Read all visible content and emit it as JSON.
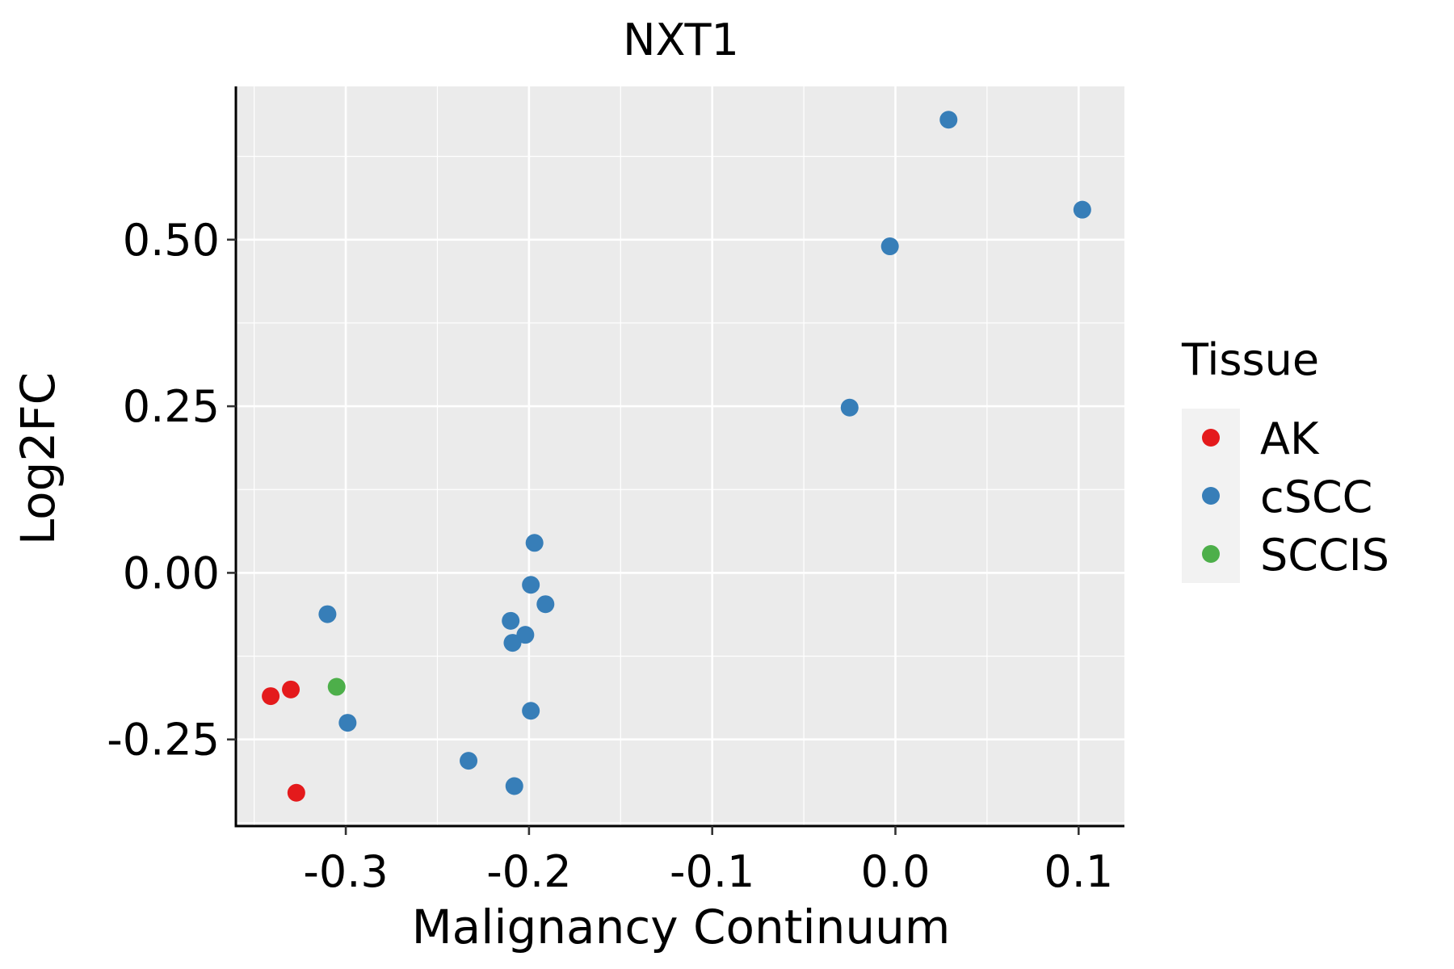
{
  "chart_data": {
    "type": "scatter",
    "title": "NXT1",
    "xlabel": "Malignancy Continuum",
    "ylabel": "Log2FC",
    "xlim": [
      -0.36,
      0.125
    ],
    "ylim": [
      -0.38,
      0.73
    ],
    "x_ticks": [
      -0.3,
      -0.2,
      -0.1,
      0.0,
      0.1
    ],
    "x_tick_labels": [
      "-0.3",
      "-0.2",
      "-0.1",
      "0.0",
      "0.1"
    ],
    "y_ticks": [
      -0.25,
      0.0,
      0.25,
      0.5
    ],
    "y_tick_labels": [
      "-0.25",
      "0.00",
      "0.25",
      "0.50"
    ],
    "grid": true,
    "legend": {
      "title": "Tissue",
      "placement": "right"
    },
    "series": [
      {
        "name": "AK",
        "color": "#e41a1c",
        "points": [
          [
            -0.341,
            -0.185
          ],
          [
            -0.33,
            -0.175
          ],
          [
            -0.327,
            -0.33
          ]
        ]
      },
      {
        "name": "cSCC",
        "color": "#377eb8",
        "points": [
          [
            0.029,
            0.68
          ],
          [
            0.102,
            0.545
          ],
          [
            -0.003,
            0.49
          ],
          [
            -0.025,
            0.248
          ],
          [
            -0.197,
            0.045
          ],
          [
            -0.199,
            -0.018
          ],
          [
            -0.191,
            -0.047
          ],
          [
            -0.21,
            -0.072
          ],
          [
            -0.202,
            -0.093
          ],
          [
            -0.209,
            -0.105
          ],
          [
            -0.31,
            -0.062
          ],
          [
            -0.299,
            -0.225
          ],
          [
            -0.199,
            -0.207
          ],
          [
            -0.233,
            -0.282
          ],
          [
            -0.208,
            -0.32
          ]
        ]
      },
      {
        "name": "SCCIS",
        "color": "#4daf4a",
        "points": [
          [
            -0.305,
            -0.171
          ]
        ]
      }
    ]
  }
}
